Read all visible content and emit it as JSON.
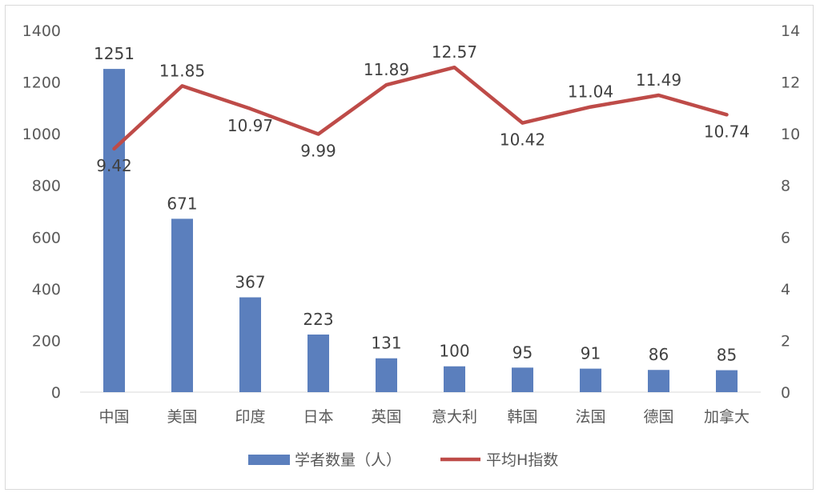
{
  "chart_data": {
    "type": "bar",
    "categories": [
      "中国",
      "美国",
      "印度",
      "日本",
      "英国",
      "意大利",
      "韩国",
      "法国",
      "德国",
      "加拿大"
    ],
    "series": [
      {
        "name": "学者数量（人）",
        "type": "bar",
        "axis": "left",
        "color": "#5b7fbd",
        "values": [
          1251,
          671,
          367,
          223,
          131,
          100,
          95,
          91,
          86,
          85
        ]
      },
      {
        "name": "平均H指数",
        "type": "line",
        "axis": "right",
        "color": "#be4b48",
        "values": [
          9.42,
          11.85,
          10.97,
          9.99,
          11.89,
          12.57,
          10.42,
          11.04,
          11.49,
          10.74
        ]
      }
    ],
    "y_left": {
      "ylim": [
        0,
        1400
      ],
      "ticks": [
        0,
        200,
        400,
        600,
        800,
        1000,
        1200,
        1400
      ]
    },
    "y_right": {
      "ylim": [
        0,
        14
      ],
      "ticks": [
        0,
        2,
        4,
        6,
        8,
        10,
        12,
        14
      ]
    },
    "legend": "bottom",
    "grid": false
  }
}
